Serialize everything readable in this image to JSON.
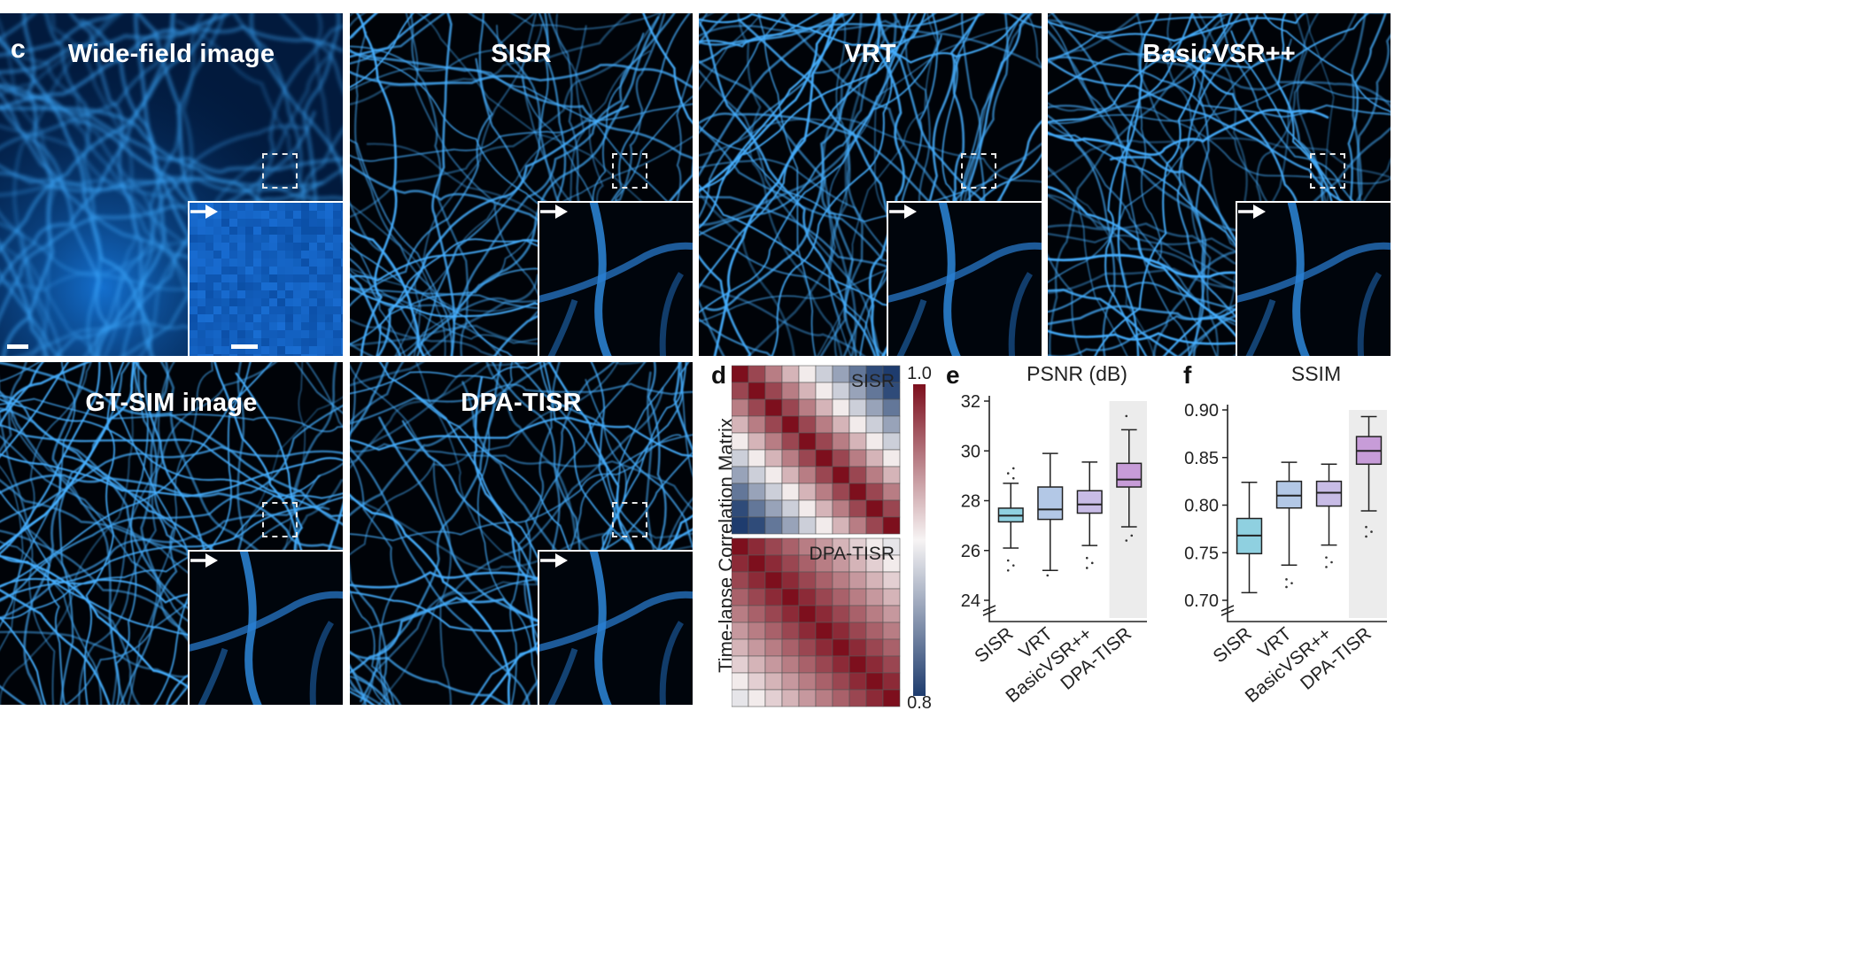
{
  "panel_c": {
    "label": "c",
    "images": [
      {
        "title": "Wide-field image",
        "style": "widefield"
      },
      {
        "title": "SISR",
        "style": "sharp"
      },
      {
        "title": "VRT",
        "style": "sharp"
      },
      {
        "title": "BasicVSR++",
        "style": "sharp"
      },
      {
        "title": "GT-SIM image",
        "style": "sharp"
      },
      {
        "title": "DPA-TISR",
        "style": "sharp"
      }
    ]
  },
  "panel_d": {
    "label": "d",
    "ylabel": "Time-lapse Correlation Matrix",
    "matrix_labels": [
      "SISR",
      "DPA-TISR"
    ],
    "colorbar_max": "1.0",
    "colorbar_min": "0.8",
    "colors": {
      "high": "#7d0f1d",
      "mid": "#f7f4f4",
      "low": "#1e3c6e"
    }
  },
  "chart_data": [
    {
      "type": "box",
      "label": "e",
      "title": "PSNR (dB)",
      "categories": [
        "SISR",
        "VRT",
        "BasicVSR++",
        "DPA-TISR"
      ],
      "ylim": [
        24,
        32
      ],
      "yticks": [
        "24",
        "26",
        "28",
        "30",
        "32"
      ],
      "boxes": [
        {
          "min": 26.1,
          "q1": 27.15,
          "median": 27.4,
          "q3": 27.7,
          "max": 28.7,
          "outliers": [
            25.2,
            25.4,
            25.6,
            28.9,
            29.1,
            29.3
          ],
          "color": "#8fd0e0"
        },
        {
          "min": 25.2,
          "q1": 27.25,
          "median": 27.65,
          "q3": 28.55,
          "max": 29.9,
          "outliers": [
            25.0
          ],
          "color": "#b3c8e6"
        },
        {
          "min": 26.2,
          "q1": 27.5,
          "median": 27.85,
          "q3": 28.4,
          "max": 29.55,
          "outliers": [
            25.3,
            25.5,
            25.7
          ],
          "color": "#c8bce6"
        },
        {
          "min": 26.95,
          "q1": 28.55,
          "median": 28.85,
          "q3": 29.5,
          "max": 30.85,
          "outliers": [
            26.4,
            26.6,
            31.4
          ],
          "color": "#c79cd8"
        }
      ],
      "highlight": "DPA-TISR"
    },
    {
      "type": "box",
      "label": "f",
      "title": "SSIM",
      "categories": [
        "SISR",
        "VRT",
        "BasicVSR++",
        "DPA-TISR"
      ],
      "ylim": [
        0.7,
        0.9
      ],
      "yticks": [
        "0.70",
        "0.75",
        "0.80",
        "0.85",
        "0.90"
      ],
      "boxes": [
        {
          "min": 0.708,
          "q1": 0.749,
          "median": 0.768,
          "q3": 0.786,
          "max": 0.824,
          "outliers": [],
          "color": "#8fd0e0"
        },
        {
          "min": 0.737,
          "q1": 0.797,
          "median": 0.81,
          "q3": 0.825,
          "max": 0.845,
          "outliers": [
            0.714,
            0.718,
            0.722
          ],
          "color": "#b3c8e6"
        },
        {
          "min": 0.758,
          "q1": 0.799,
          "median": 0.813,
          "q3": 0.825,
          "max": 0.843,
          "outliers": [
            0.735,
            0.74,
            0.745
          ],
          "color": "#c8bce6"
        },
        {
          "min": 0.794,
          "q1": 0.843,
          "median": 0.857,
          "q3": 0.872,
          "max": 0.893,
          "outliers": [
            0.767,
            0.772,
            0.777
          ],
          "color": "#c79cd8"
        }
      ],
      "highlight": "DPA-TISR"
    }
  ]
}
